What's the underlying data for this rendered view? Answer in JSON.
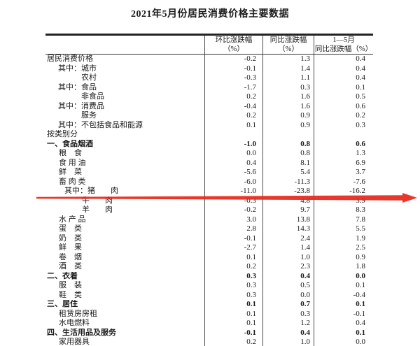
{
  "title": "2021年5月份居民消费价格主要数据",
  "table": {
    "headers": [
      {
        "line1": "环比涨跌幅",
        "line2": "（%）"
      },
      {
        "line1": "同比涨跌幅",
        "line2": "（%）"
      },
      {
        "line1": "1—5月",
        "line2": "同比涨跌幅（%）"
      }
    ],
    "rows": [
      {
        "label": "居民消费价格",
        "indent": 2,
        "bold": false,
        "mom": "-0.2",
        "yoy": "1.3",
        "ytd": "0.4"
      },
      {
        "label": "其中：城市",
        "indent": 18,
        "bold": false,
        "mom": "-0.1",
        "yoy": "1.4",
        "ytd": "0.4"
      },
      {
        "label": "农村",
        "indent": 51,
        "bold": false,
        "mom": "-0.3",
        "yoy": "1.1",
        "ytd": "0.4"
      },
      {
        "label": "其中：食品",
        "indent": 18,
        "bold": false,
        "mom": "-1.7",
        "yoy": "0.3",
        "ytd": "0.1"
      },
      {
        "label": "非食品",
        "indent": 51,
        "bold": false,
        "mom": "0.2",
        "yoy": "1.6",
        "ytd": "0.5"
      },
      {
        "label": "其中：消费品",
        "indent": 18,
        "bold": false,
        "mom": "-0.4",
        "yoy": "1.6",
        "ytd": "0.6"
      },
      {
        "label": "服务",
        "indent": 51,
        "bold": false,
        "mom": "0.2",
        "yoy": "0.9",
        "ytd": "0.2"
      },
      {
        "label": "其中：不包括食品和能源",
        "indent": 18,
        "bold": false,
        "mom": "0.1",
        "yoy": "0.9",
        "ytd": "0.3"
      },
      {
        "label": "按类别分",
        "indent": 2,
        "bold": false,
        "mom": "",
        "yoy": "",
        "ytd": ""
      },
      {
        "label": "一、食品烟酒",
        "indent": 2,
        "bold": true,
        "mom": "-1.0",
        "yoy": "0.8",
        "ytd": "0.6"
      },
      {
        "label": "粮　食",
        "indent": 19,
        "bold": false,
        "mom": "0.0",
        "yoy": "0.8",
        "ytd": "1.3"
      },
      {
        "label": "食 用 油",
        "indent": 19,
        "bold": false,
        "mom": "0.4",
        "yoy": "8.1",
        "ytd": "6.9"
      },
      {
        "label": "鲜　菜",
        "indent": 19,
        "bold": false,
        "mom": "-5.6",
        "yoy": "5.4",
        "ytd": "3.7"
      },
      {
        "label": "畜 肉 类",
        "indent": 19,
        "bold": false,
        "mom": "-6.0",
        "yoy": "-11.3",
        "ytd": "-7.6"
      },
      {
        "label": "其中：猪　　肉",
        "indent": 27,
        "bold": false,
        "mom": "-11.0",
        "yoy": "-23.8",
        "ytd": "-16.2"
      },
      {
        "label": "牛　　肉",
        "indent": 52,
        "bold": false,
        "mom": "-0.3",
        "yoy": "4.8",
        "ytd": "3.9"
      },
      {
        "label": "羊　　肉",
        "indent": 52,
        "bold": false,
        "mom": "-0.2",
        "yoy": "9.7",
        "ytd": "8.3"
      },
      {
        "label": "水 产 品",
        "indent": 19,
        "bold": false,
        "mom": "3.0",
        "yoy": "13.8",
        "ytd": "7.8"
      },
      {
        "label": "蛋　类",
        "indent": 19,
        "bold": false,
        "mom": "2.8",
        "yoy": "14.3",
        "ytd": "5.5"
      },
      {
        "label": "奶　类",
        "indent": 19,
        "bold": false,
        "mom": "-0.1",
        "yoy": "2.4",
        "ytd": "1.9"
      },
      {
        "label": "鲜　果",
        "indent": 19,
        "bold": false,
        "mom": "-2.7",
        "yoy": "1.4",
        "ytd": "2.5"
      },
      {
        "label": "卷　烟",
        "indent": 19,
        "bold": false,
        "mom": "0.1",
        "yoy": "1.0",
        "ytd": "0.9"
      },
      {
        "label": "酒　类",
        "indent": 19,
        "bold": false,
        "mom": "0.2",
        "yoy": "2.3",
        "ytd": "1.8"
      },
      {
        "label": "二、衣着",
        "indent": 2,
        "bold": true,
        "mom": "0.3",
        "yoy": "0.4",
        "ytd": "0.0"
      },
      {
        "label": "服　装",
        "indent": 19,
        "bold": false,
        "mom": "0.3",
        "yoy": "0.5",
        "ytd": "0.1"
      },
      {
        "label": "鞋　类",
        "indent": 19,
        "bold": false,
        "mom": "0.3",
        "yoy": "0.0",
        "ytd": "-0.4"
      },
      {
        "label": "三、居住",
        "indent": 2,
        "bold": true,
        "mom": "0.1",
        "yoy": "0.7",
        "ytd": "0.1"
      },
      {
        "label": "租赁房房租",
        "indent": 19,
        "bold": false,
        "mom": "0.1",
        "yoy": "0.3",
        "ytd": "-0.1"
      },
      {
        "label": "水电燃料",
        "indent": 19,
        "bold": false,
        "mom": "0.1",
        "yoy": "1.2",
        "ytd": "0.4"
      },
      {
        "label": "四、生活用品及服务",
        "indent": 2,
        "bold": true,
        "mom": "-0.1",
        "yoy": "0.4",
        "ytd": "0.1"
      },
      {
        "label": "家用器具",
        "indent": 19,
        "bold": false,
        "mom": "0.2",
        "yoy": "1.0",
        "ytd": "0.0"
      }
    ]
  },
  "annotation": {
    "arrow_color": "#e8291c",
    "target_row_label": "其中：猪　　肉"
  }
}
